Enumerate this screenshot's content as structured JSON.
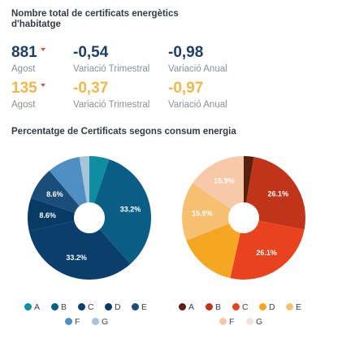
{
  "header": {
    "title": "Nombre total de certificats energètics d'habitatge"
  },
  "metrics": [
    {
      "total": "881",
      "total_label": "Agost",
      "total_color": "#1f3f66",
      "q_value": "-0,54",
      "q_label": "Variació Trimestral",
      "a_value": "-0,98",
      "a_label": "Variació Anual",
      "accent": "#1f3f66",
      "arrow_color": "#d9534f"
    },
    {
      "total": "135",
      "total_label": "Agost",
      "total_color": "#f0b84a",
      "q_value": "-0,37",
      "q_label": "Variació Trimestral",
      "a_value": "-0,97",
      "a_label": "Variació Anual",
      "accent": "#f0b84a",
      "arrow_color": "#d9534f"
    }
  ],
  "section_title": "Percentatge de Certificats segons consum energia",
  "chart_data": [
    {
      "type": "pie",
      "donut": true,
      "categories": [
        "A",
        "B",
        "C",
        "D",
        "E",
        "F",
        "G"
      ],
      "values": [
        5.2,
        33.2,
        33.2,
        8.6,
        8.6,
        8.6,
        2.6
      ],
      "data_labels": [
        "",
        "33.2%",
        "33.2%",
        "8.6%",
        "8.6%",
        "",
        ""
      ],
      "colors": [
        "#0e8ea0",
        "#0a5e86",
        "#0a3e6b",
        "#083a66",
        "#1a4d7a",
        "#4f8fc4",
        "#a8c4da"
      ],
      "legend_position": "bottom"
    },
    {
      "type": "pie",
      "donut": true,
      "categories": [
        "A",
        "B",
        "C",
        "D",
        "E",
        "F",
        "G"
      ],
      "values": [
        2.7,
        26.1,
        26.1,
        15.9,
        15.9,
        15.9,
        0
      ],
      "data_labels": [
        "",
        "26.1%",
        "26.1%",
        "",
        "15.9%",
        "15.9%",
        ""
      ],
      "colors": [
        "#5a2010",
        "#c0351a",
        "#e8421e",
        "#f5a623",
        "#f7c070",
        "#f7c9a8",
        "#f4e4d6"
      ],
      "legend_position": "bottom"
    }
  ]
}
